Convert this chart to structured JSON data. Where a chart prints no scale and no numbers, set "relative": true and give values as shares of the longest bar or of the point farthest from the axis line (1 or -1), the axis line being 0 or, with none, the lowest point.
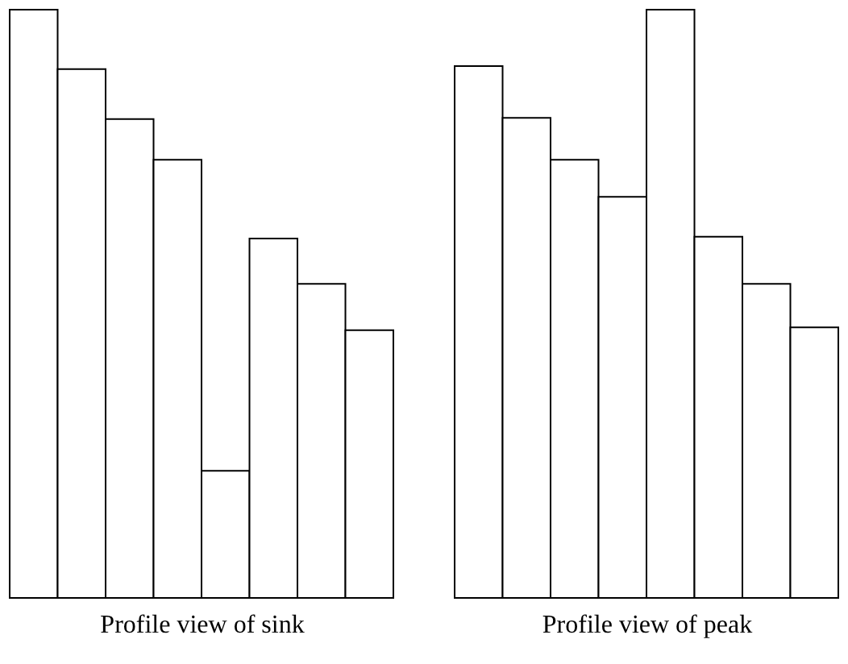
{
  "chart_data": [
    {
      "type": "bar",
      "relative": true,
      "xlabel": "Profile view of sink",
      "categories": [
        null,
        null,
        null,
        null,
        null,
        null,
        null,
        null
      ],
      "color": "#ffffff",
      "values": [
        1,
        0.899,
        0.814,
        0.745,
        0.216,
        0.611,
        0.534,
        0.455
      ]
    },
    {
      "type": "bar",
      "relative": true,
      "xlabel": "Profile view of peak",
      "categories": [
        null,
        null,
        null,
        null,
        null,
        null,
        null,
        null
      ],
      "color": "#ffffff",
      "values": [
        0.904,
        0.816,
        0.745,
        0.682,
        1,
        0.614,
        0.534,
        0.46
      ]
    }
  ]
}
